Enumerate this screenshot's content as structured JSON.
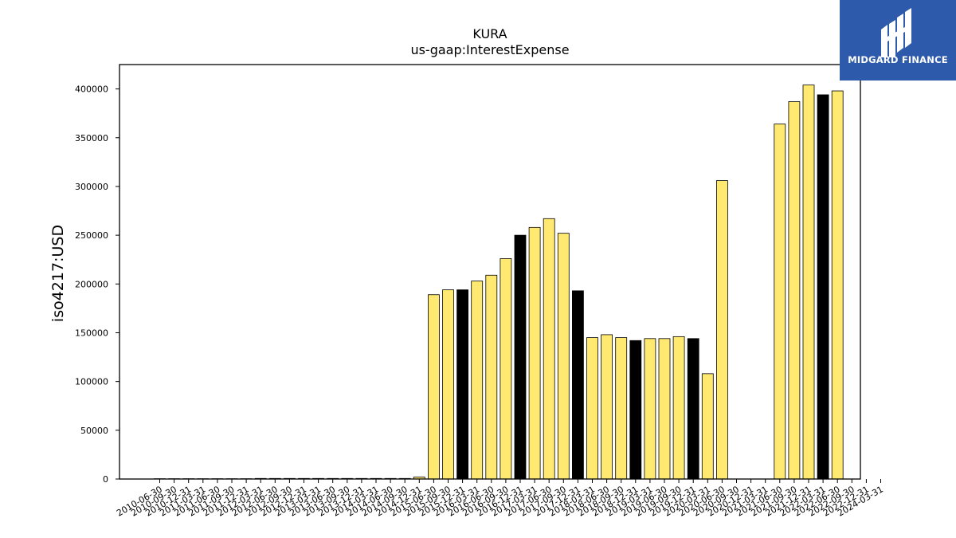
{
  "chart_data": {
    "type": "bar",
    "title": "KURA",
    "subtitle": "us-gaap:InterestExpense",
    "xlabel": "",
    "ylabel": "iso4217:USD",
    "ylim": [
      0,
      425000
    ],
    "yticks": [
      0,
      50000,
      100000,
      150000,
      200000,
      250000,
      300000,
      350000,
      400000
    ],
    "grid": false,
    "colors": {
      "quarter": "#ffe970",
      "year_end": "#000000",
      "edge": "#000000"
    },
    "categories": [
      "2010-06-30",
      "2010-09-30",
      "2010-12-31",
      "2011-03-31",
      "2011-06-30",
      "2011-09-30",
      "2011-12-31",
      "2012-03-31",
      "2012-06-30",
      "2012-09-30",
      "2012-12-31",
      "2013-03-31",
      "2013-06-30",
      "2013-09-30",
      "2013-12-31",
      "2014-03-31",
      "2014-06-30",
      "2014-09-30",
      "2014-12-31",
      "2015-06-30",
      "2015-09-30",
      "2015-12-31",
      "2016-03-31",
      "2016-06-30",
      "2016-09-30",
      "2016-12-31",
      "2017-03-31",
      "2017-06-30",
      "2017-09-30",
      "2017-12-31",
      "2018-03-31",
      "2018-06-30",
      "2018-09-30",
      "2018-12-31",
      "2019-03-31",
      "2019-06-30",
      "2019-09-30",
      "2019-12-31",
      "2020-03-31",
      "2020-06-30",
      "2020-09-30",
      "2020-12-31",
      "2021-03-31",
      "2021-06-30",
      "2021-09-30",
      "2021-12-31",
      "2022-03-31",
      "2022-06-30",
      "2022-09-30",
      "2022-12-31",
      "2024-03-31"
    ],
    "values": [
      300,
      300,
      300,
      300,
      300,
      300,
      300,
      600,
      600,
      600,
      600,
      600,
      600,
      600,
      600,
      600,
      600,
      600,
      2000,
      189000,
      194000,
      194000,
      203000,
      209000,
      226000,
      250000,
      258000,
      267000,
      252000,
      193000,
      145000,
      148000,
      145000,
      142000,
      144000,
      144000,
      146000,
      144000,
      108000,
      306000,
      0,
      0,
      0,
      364000,
      387000,
      404000,
      394000,
      398000,
      0,
      0,
      0
    ],
    "year_end_flags": [
      false,
      false,
      false,
      false,
      false,
      false,
      false,
      false,
      false,
      false,
      false,
      false,
      false,
      false,
      false,
      false,
      false,
      false,
      false,
      false,
      false,
      true,
      false,
      false,
      false,
      true,
      false,
      false,
      false,
      true,
      false,
      false,
      false,
      true,
      false,
      false,
      false,
      true,
      false,
      false,
      false,
      false,
      false,
      false,
      false,
      false,
      true,
      false,
      false,
      false,
      false
    ]
  },
  "logo": {
    "text": "MIDGARD FINANCE",
    "background": "#2e5aab"
  }
}
